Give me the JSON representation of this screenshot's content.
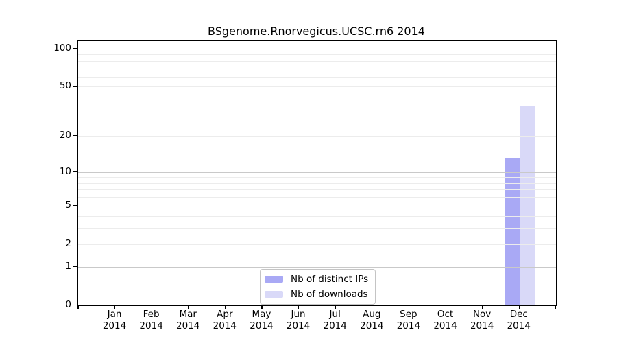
{
  "chart_data": {
    "type": "bar",
    "title": "BSgenome.Rnorvegicus.UCSC.rn6 2014",
    "xlabel": "",
    "ylabel": "",
    "yscale": "log1p",
    "grid": true,
    "legend_position": "bottom-center",
    "yticks": [
      0,
      1,
      2,
      5,
      10,
      20,
      50,
      100
    ],
    "major_gridlines": [
      1,
      10,
      100
    ],
    "minor_gridlines": [
      2,
      3,
      4,
      5,
      6,
      7,
      8,
      9,
      20,
      30,
      40,
      50,
      60,
      70,
      80,
      90
    ],
    "categories": [
      {
        "month": "Jan",
        "year": "2014"
      },
      {
        "month": "Feb",
        "year": "2014"
      },
      {
        "month": "Mar",
        "year": "2014"
      },
      {
        "month": "Apr",
        "year": "2014"
      },
      {
        "month": "May",
        "year": "2014"
      },
      {
        "month": "Jun",
        "year": "2014"
      },
      {
        "month": "Jul",
        "year": "2014"
      },
      {
        "month": "Aug",
        "year": "2014"
      },
      {
        "month": "Sep",
        "year": "2014"
      },
      {
        "month": "Oct",
        "year": "2014"
      },
      {
        "month": "Nov",
        "year": "2014"
      },
      {
        "month": "Dec",
        "year": "2014"
      }
    ],
    "series": [
      {
        "name": "Nb of distinct IPs",
        "color": "#a9a9f5",
        "values": [
          0,
          0,
          0,
          0,
          0,
          0,
          0,
          0,
          0,
          0,
          0,
          13
        ]
      },
      {
        "name": "Nb of downloads",
        "color": "#d9d9f8",
        "values": [
          0,
          0,
          0,
          0,
          0,
          0,
          0,
          0,
          0,
          0,
          0,
          35
        ]
      }
    ],
    "colors": {
      "major_grid": "#c9c9c9",
      "minor_grid": "#ececec",
      "axis": "#000000"
    }
  },
  "legend": {
    "items": [
      {
        "label": "Nb of distinct IPs",
        "color": "#a9a9f5"
      },
      {
        "label": "Nb of downloads",
        "color": "#d9d9f8"
      }
    ]
  }
}
